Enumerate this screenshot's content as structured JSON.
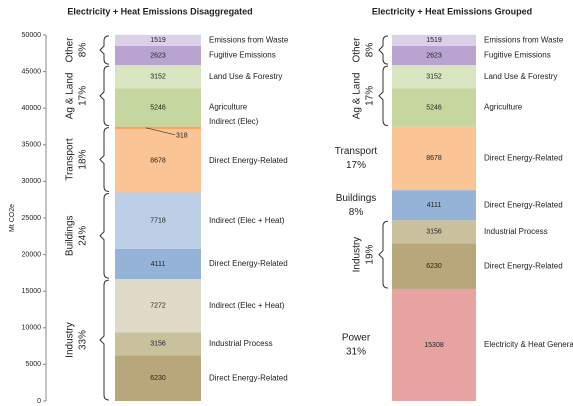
{
  "chart_data": [
    {
      "type": "stacked-bar",
      "title": "Electricity + Heat Emissions Disaggregated",
      "ylabel": "Mt CO2e",
      "ylim": [
        0,
        50000
      ],
      "yticks": [
        0,
        5000,
        10000,
        15000,
        20000,
        25000,
        30000,
        35000,
        40000,
        45000,
        50000
      ],
      "groups": [
        {
          "name": "Industry",
          "share": "33%",
          "rotated": true,
          "segments": [
            {
              "name": "Direct Energy-Related",
              "value": 6230,
              "color": "#b8a77a"
            },
            {
              "name": "Industrial Process",
              "value": 3156,
              "color": "#c9c09e"
            },
            {
              "name": "Indirect (Elec + Heat)",
              "value": 7272,
              "color": "#e0dbc8"
            }
          ]
        },
        {
          "name": "Buildings",
          "share": "24%",
          "rotated": true,
          "segments": [
            {
              "name": "Direct Energy-Related",
              "value": 4111,
              "color": "#95b3d7"
            },
            {
              "name": "Indirect (Elec + Heat)",
              "value": 7718,
              "color": "#bccfe6"
            }
          ]
        },
        {
          "name": "Transport",
          "share": "18%",
          "rotated": true,
          "segments": [
            {
              "name": "Direct Energy-Related",
              "value": 8678,
              "color": "#fac494"
            },
            {
              "name": "Indirect (Elec)",
              "value": 318,
              "color": "#f5a25c"
            }
          ]
        },
        {
          "name": "Ag & Land",
          "share": "17%",
          "rotated": true,
          "segments": [
            {
              "name": "Agriculture",
              "value": 5246,
              "color": "#c5d79f"
            },
            {
              "name": "Land Use & Forestry",
              "value": 3152,
              "color": "#d9e4c1"
            }
          ]
        },
        {
          "name": "Other",
          "share": "8%",
          "rotated": true,
          "segments": [
            {
              "name": "Fugitive Emissions",
              "value": 2623,
              "color": "#b9a4d1"
            },
            {
              "name": "Emissions from Waste",
              "value": 1519,
              "color": "#dbd0e8"
            }
          ]
        }
      ]
    },
    {
      "type": "stacked-bar",
      "title": "Electricity + Heat Emissions Grouped",
      "ylim": [
        0,
        50000
      ],
      "groups": [
        {
          "name": "Power",
          "share": "31%",
          "rotated": false,
          "segments": [
            {
              "name": "Electricity & Heat Generation",
              "value": 15308,
              "color": "#e6a3a1"
            }
          ]
        },
        {
          "name": "Industry",
          "share": "19%",
          "rotated": true,
          "segments": [
            {
              "name": "Direct Energy-Related",
              "value": 6230,
              "color": "#b8a77a"
            },
            {
              "name": "Industrial Process",
              "value": 3156,
              "color": "#c9c09e"
            }
          ]
        },
        {
          "name": "Buildings",
          "share": "8%",
          "rotated": false,
          "segments": [
            {
              "name": "Direct Energy-Related",
              "value": 4111,
              "color": "#95b3d7"
            }
          ]
        },
        {
          "name": "Transport",
          "share": "17%",
          "rotated": false,
          "segments": [
            {
              "name": "Direct Energy-Related",
              "value": 8678,
              "color": "#fac494"
            }
          ]
        },
        {
          "name": "Ag & Land",
          "share": "17%",
          "rotated": true,
          "segments": [
            {
              "name": "Agriculture",
              "value": 5246,
              "color": "#c5d79f"
            },
            {
              "name": "Land Use & Forestry",
              "value": 3152,
              "color": "#d9e4c1"
            }
          ]
        },
        {
          "name": "Other",
          "share": "8%",
          "rotated": true,
          "segments": [
            {
              "name": "Fugitive Emissions",
              "value": 2623,
              "color": "#b9a4d1"
            },
            {
              "name": "Emissions from Waste",
              "value": 1519,
              "color": "#dbd0e8"
            }
          ]
        }
      ]
    }
  ]
}
